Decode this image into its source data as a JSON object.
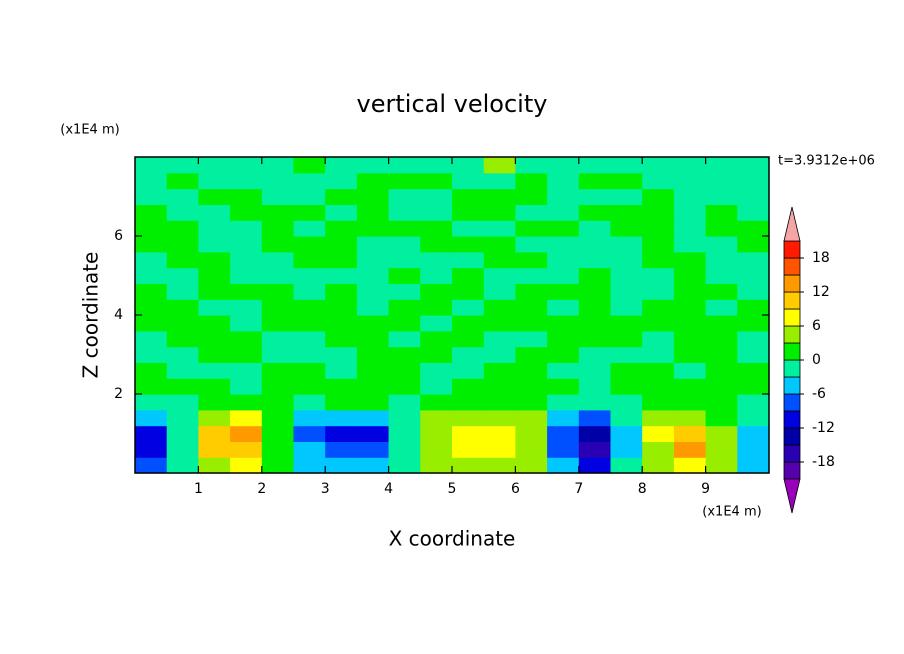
{
  "chart_data": {
    "type": "contour",
    "title": "vertical velocity",
    "xlabel": "X coordinate",
    "ylabel": "Z coordinate",
    "x_unit": "(x1E4 m)",
    "y_unit": "(x1E4 m)",
    "time_label": "t=3.9312e+06",
    "xlim": [
      0,
      10
    ],
    "ylim": [
      0,
      8
    ],
    "xticks": [
      1,
      2,
      3,
      4,
      5,
      6,
      7,
      8,
      9
    ],
    "yticks": [
      2,
      4,
      6
    ],
    "x": [
      0.25,
      0.75,
      1.25,
      1.75,
      2.25,
      2.75,
      3.25,
      3.75,
      4.25,
      4.75,
      5.25,
      5.75,
      6.25,
      6.75,
      7.25,
      7.75,
      8.25,
      8.75,
      9.25,
      9.75
    ],
    "z": [
      0.2,
      0.6,
      1.0,
      1.4,
      1.8,
      2.2,
      2.6,
      3.0,
      3.4,
      3.8,
      4.2,
      4.6,
      5.0,
      5.4,
      5.8,
      6.2,
      6.6,
      7.0,
      7.4,
      7.8
    ],
    "values": [
      [
        -8,
        -2,
        5,
        6,
        1,
        -4,
        -6,
        -5,
        -2,
        3,
        5,
        5,
        3,
        -5,
        -12,
        -3,
        3,
        8,
        3,
        -4
      ],
      [
        -11,
        -3,
        9,
        11,
        2,
        -6,
        -9,
        -8,
        -3,
        4,
        7,
        8,
        4,
        -7,
        -16,
        -4,
        5,
        13,
        4,
        -6
      ],
      [
        -10,
        -3,
        10,
        12,
        2,
        -8,
        -10,
        -10,
        -3,
        4,
        8,
        8,
        4,
        -7,
        -14,
        -4,
        6,
        11,
        4,
        -6
      ],
      [
        -5,
        -2,
        5,
        6,
        1,
        -5,
        -4,
        -6,
        -2,
        3,
        5,
        5,
        3,
        -4,
        -7,
        -3,
        3,
        5,
        2,
        -3
      ],
      [
        -1,
        -1,
        1,
        2,
        0,
        -2,
        1,
        2,
        -1,
        1,
        2,
        2,
        1,
        -1,
        -2,
        -1,
        1,
        2,
        0,
        -1
      ],
      [
        1,
        1,
        1,
        -1,
        1,
        1,
        1,
        1,
        1,
        -1,
        1,
        1,
        1,
        1,
        -1,
        1,
        1,
        1,
        1,
        1
      ],
      [
        1,
        -1,
        -1,
        -1,
        1,
        1,
        -1,
        1,
        1,
        -1,
        -1,
        1,
        1,
        -1,
        -1,
        1,
        1,
        -1,
        1,
        1
      ],
      [
        -1,
        -1,
        1,
        1,
        -1,
        -1,
        -1,
        1,
        1,
        1,
        -1,
        -1,
        1,
        1,
        -1,
        -1,
        -1,
        1,
        1,
        -1
      ],
      [
        -1,
        1,
        1,
        1,
        -1,
        -1,
        1,
        1,
        -1,
        1,
        1,
        -1,
        -1,
        1,
        1,
        1,
        -1,
        1,
        1,
        -1
      ],
      [
        1,
        1,
        1,
        -1,
        1,
        1,
        1,
        1,
        1,
        -1,
        1,
        1,
        1,
        1,
        1,
        1,
        1,
        1,
        1,
        1
      ],
      [
        1,
        1,
        -1,
        -1,
        1,
        1,
        1,
        -1,
        1,
        1,
        -1,
        1,
        1,
        -1,
        1,
        -1,
        1,
        1,
        -1,
        1
      ],
      [
        1,
        -1,
        1,
        1,
        1,
        -1,
        1,
        -1,
        -1,
        1,
        1,
        -1,
        1,
        1,
        1,
        -1,
        -1,
        1,
        1,
        -1
      ],
      [
        -1,
        -1,
        1,
        -1,
        -1,
        -1,
        -1,
        -1,
        1,
        -1,
        1,
        -1,
        -1,
        -1,
        1,
        -1,
        -1,
        1,
        -1,
        -1
      ],
      [
        -1,
        1,
        1,
        -1,
        -1,
        1,
        1,
        -1,
        -1,
        -1,
        -1,
        1,
        1,
        -1,
        -1,
        -1,
        1,
        1,
        -1,
        -1
      ],
      [
        1,
        1,
        -1,
        -1,
        1,
        1,
        1,
        -1,
        -1,
        1,
        1,
        1,
        -1,
        -1,
        -1,
        -1,
        1,
        -1,
        -1,
        1
      ],
      [
        1,
        1,
        -1,
        -1,
        1,
        -1,
        1,
        1,
        1,
        1,
        -1,
        -1,
        1,
        1,
        -1,
        1,
        1,
        -1,
        1,
        1
      ],
      [
        1,
        -1,
        -1,
        1,
        1,
        1,
        -1,
        1,
        -1,
        -1,
        1,
        1,
        -1,
        -1,
        1,
        1,
        1,
        -1,
        1,
        -1
      ],
      [
        -1,
        -1,
        1,
        1,
        -1,
        -1,
        1,
        1,
        -1,
        -1,
        1,
        1,
        1,
        -1,
        -1,
        -1,
        1,
        -1,
        -1,
        -1
      ],
      [
        -1,
        1,
        -1,
        -1,
        -1,
        -1,
        -1,
        1,
        1,
        1,
        -1,
        -1,
        1,
        -1,
        1,
        1,
        -1,
        -1,
        -1,
        -1
      ],
      [
        -1,
        -1,
        -1,
        -1,
        -1,
        1,
        -1,
        -1,
        -1,
        -1,
        -1,
        4,
        -1,
        -1,
        -1,
        -1,
        -1,
        -1,
        -1,
        -1
      ]
    ],
    "levels": [
      -21,
      -18,
      -15,
      -12,
      -9,
      -6,
      -3,
      0,
      3,
      6,
      9,
      12,
      15,
      18,
      21
    ],
    "colors": [
      "#5500aa",
      "#2a00b5",
      "#0000a8",
      "#0000e0",
      "#0050ff",
      "#00c8ff",
      "#00f0a0",
      "#00ee00",
      "#99ee00",
      "#ffff00",
      "#ffcc00",
      "#ff9900",
      "#ff5500",
      "#ff1a00"
    ],
    "under_color": "#9900bb",
    "over_color": "#f4a6a6",
    "colorbar_ticks": [
      -18,
      -12,
      -6,
      0,
      6,
      12,
      18
    ]
  }
}
